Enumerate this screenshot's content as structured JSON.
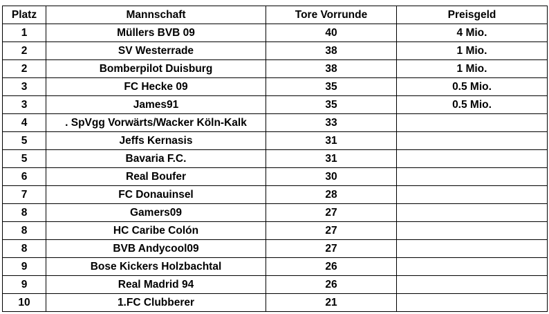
{
  "table": {
    "headers": [
      "Platz",
      "Mannschaft",
      "Tore Vorrunde",
      "Preisgeld"
    ],
    "rows": [
      [
        "1",
        "Müllers BVB 09",
        "40",
        "4 Mio."
      ],
      [
        "2",
        "SV Westerrade",
        "38",
        "1 Mio."
      ],
      [
        "2",
        "Bomberpilot Duisburg",
        "38",
        "1 Mio."
      ],
      [
        "3",
        "FC Hecke 09",
        "35",
        "0.5 Mio."
      ],
      [
        "3",
        "James91",
        "35",
        "0.5 Mio."
      ],
      [
        "4",
        ". SpVgg Vorwärts/Wacker Köln-Kalk",
        "33",
        ""
      ],
      [
        "5",
        "Jeffs Kernasis",
        "31",
        ""
      ],
      [
        "5",
        "Bavaria F.C.",
        "31",
        ""
      ],
      [
        "6",
        "Real Boufer",
        "30",
        ""
      ],
      [
        "7",
        "FC Donauinsel",
        "28",
        ""
      ],
      [
        "8",
        "Gamers09",
        "27",
        ""
      ],
      [
        "8",
        "HC Caribe Colón",
        "27",
        ""
      ],
      [
        "8",
        "BVB Andycool09",
        "27",
        ""
      ],
      [
        "9",
        "Bose Kickers Holzbachtal",
        "26",
        ""
      ],
      [
        "9",
        "Real Madrid 94",
        "26",
        ""
      ],
      [
        "10",
        "1.FC Clubberer",
        "21",
        ""
      ]
    ]
  }
}
